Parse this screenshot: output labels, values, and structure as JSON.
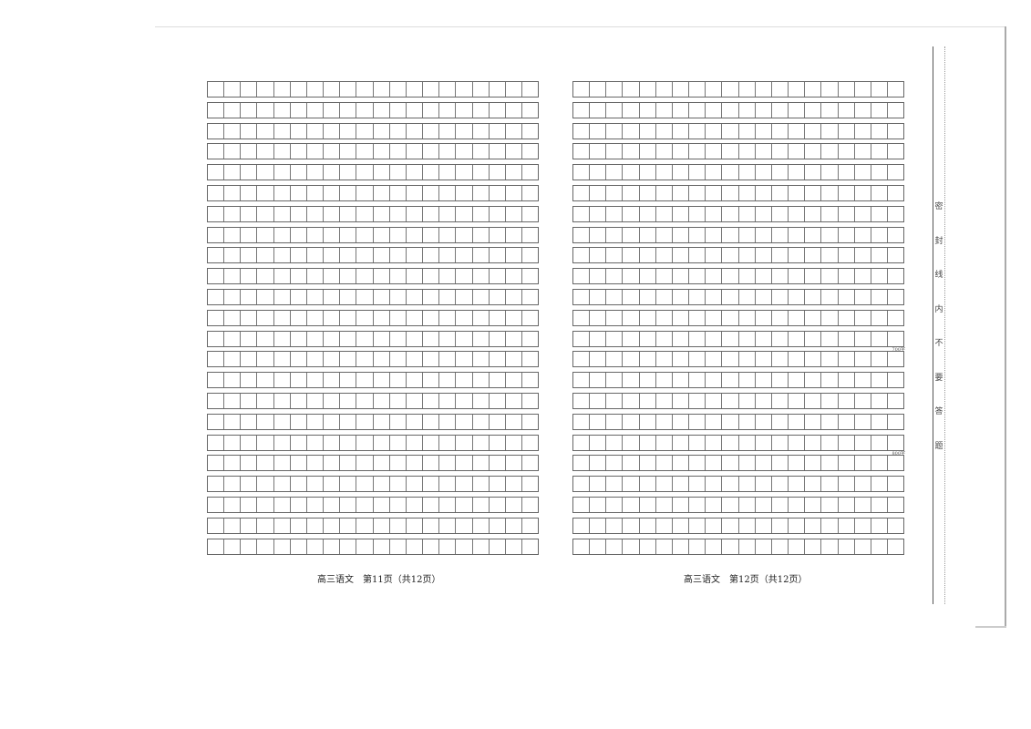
{
  "left_page": {
    "footer": "高三语文　第11页（共12页）"
  },
  "right_page": {
    "footer": "高三语文　第12页（共12页）",
    "word_count_markers": [
      "700字",
      "800字"
    ]
  },
  "seal_margin": {
    "chars": [
      "密",
      "封",
      "线",
      "内",
      "不",
      "要",
      "答",
      "题"
    ]
  }
}
